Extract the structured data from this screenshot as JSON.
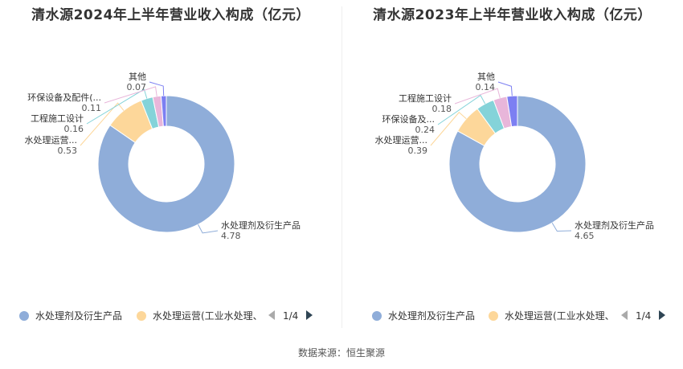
{
  "footer": {
    "source": "数据来源：恒生聚源"
  },
  "colors": [
    "#8fadd9",
    "#fdd79a",
    "#84d3d9",
    "#e8b6da",
    "#7c7ff2"
  ],
  "chart_data": [
    {
      "type": "pie",
      "title": "清水源2024年上半年营业收入构成（亿元）",
      "categories": [
        "水处理剂及衍生产品",
        "水处理运营...",
        "工程施工设计",
        "环保设备及配件(...",
        "其他"
      ],
      "values": [
        4.78,
        0.53,
        0.16,
        0.11,
        0.07
      ],
      "value_labels": [
        "4.78",
        "0.53",
        "0.16",
        "0.11",
        "0.07"
      ],
      "legend": {
        "items": [
          "水处理剂及衍生产品",
          "水处理运营(工业水处理、"
        ],
        "page": "1/4",
        "position": "bottom"
      }
    },
    {
      "type": "pie",
      "title": "清水源2023年上半年营业收入构成（亿元）",
      "categories": [
        "水处理剂及衍生产品",
        "水处理运营...",
        "环保设备及...",
        "工程施工设计",
        "其他"
      ],
      "values": [
        4.65,
        0.39,
        0.24,
        0.18,
        0.14
      ],
      "value_labels": [
        "4.65",
        "0.39",
        "0.24",
        "0.18",
        "0.14"
      ],
      "legend": {
        "items": [
          "水处理剂及衍生产品",
          "水处理运营(工业水处理、"
        ],
        "page": "1/4",
        "position": "bottom"
      }
    }
  ]
}
